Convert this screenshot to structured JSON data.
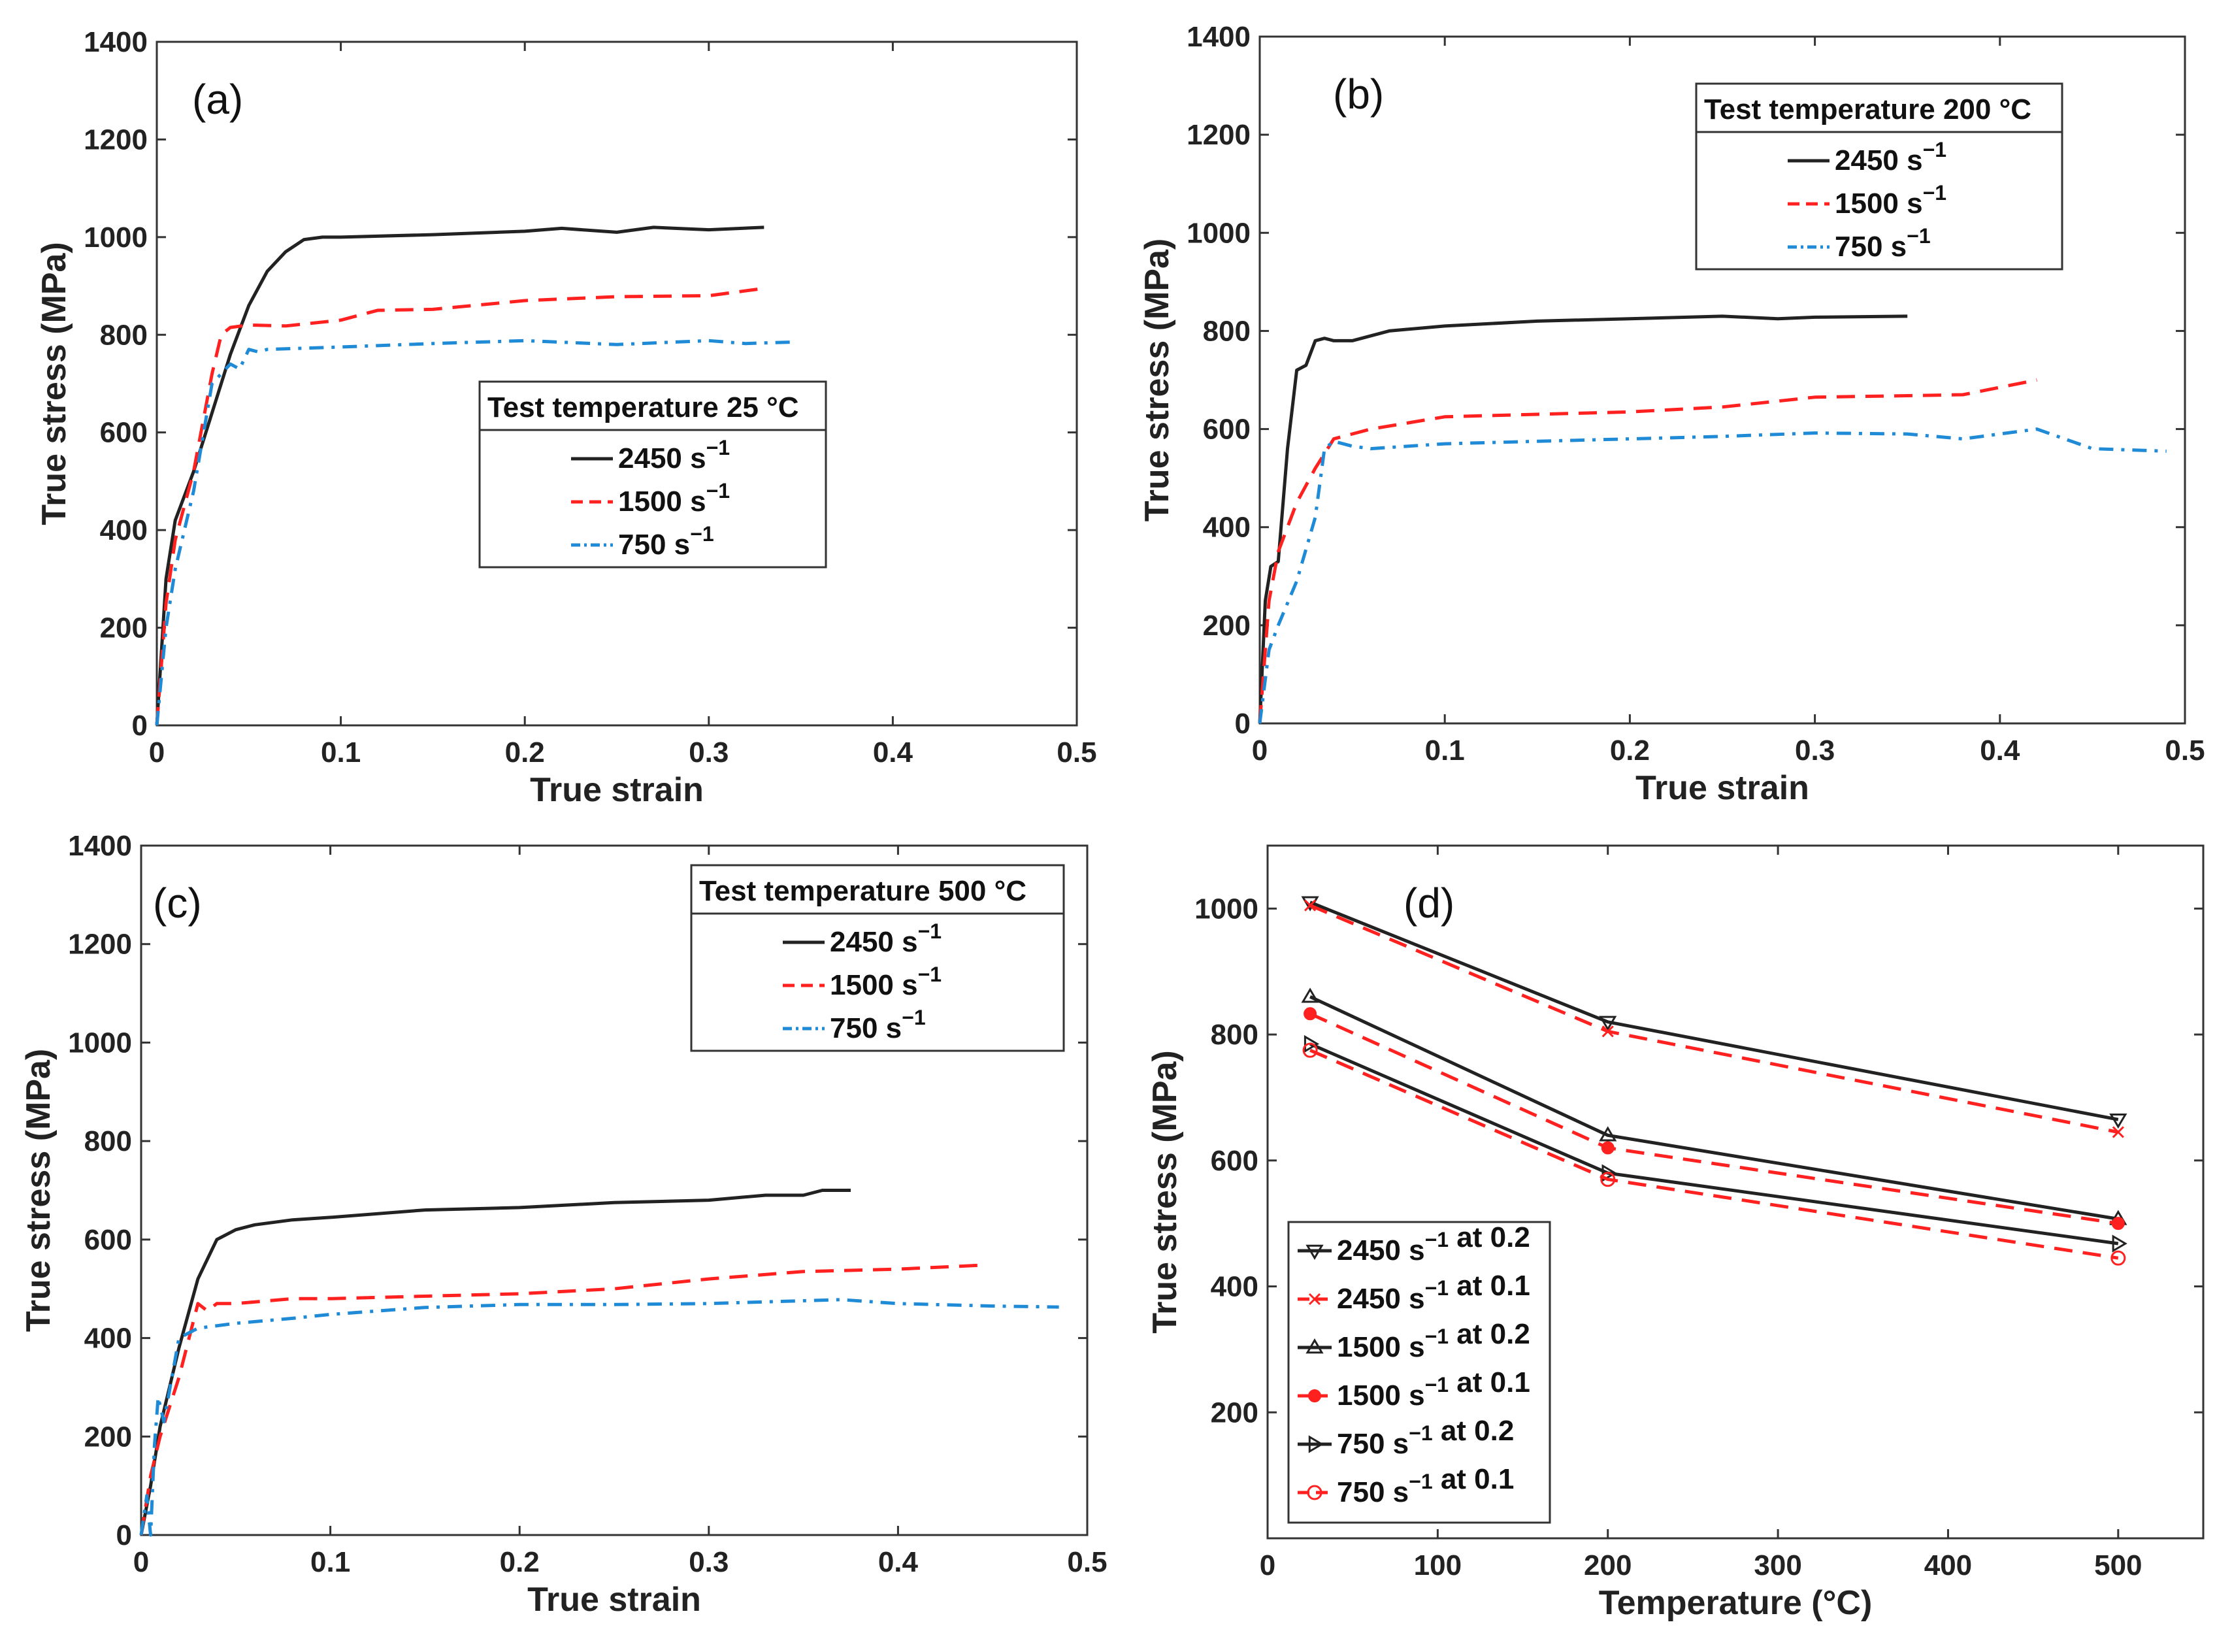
{
  "colors": {
    "black": "#222222",
    "red": "#ff2020",
    "blue": "#1f8ad6"
  },
  "chart_data": [
    {
      "panel": "(a)",
      "type": "line",
      "xlabel": "True strain",
      "ylabel": "True stress (MPa)",
      "xlim": [
        0,
        0.5
      ],
      "ylim": [
        0,
        1400
      ],
      "xticks": [
        "0",
        "0.1",
        "0.2",
        "0.3",
        "0.4",
        "0.5"
      ],
      "yticks": [
        "0",
        "200",
        "400",
        "600",
        "800",
        "1000",
        "1200",
        "1400"
      ],
      "legend": {
        "title": "Test temperature 25 °C",
        "position": "center-right"
      },
      "series": [
        {
          "name": "2450 s−1",
          "style": "solid",
          "color": "#222222",
          "x": [
            0,
            0.005,
            0.01,
            0.02,
            0.03,
            0.04,
            0.05,
            0.06,
            0.07,
            0.08,
            0.09,
            0.1,
            0.15,
            0.2,
            0.22,
            0.25,
            0.27,
            0.3,
            0.33
          ],
          "y": [
            0,
            300,
            420,
            520,
            640,
            760,
            860,
            930,
            970,
            995,
            1000,
            1000,
            1005,
            1012,
            1018,
            1010,
            1020,
            1015,
            1020
          ]
        },
        {
          "name": "1500 s−1",
          "style": "dashed",
          "color": "#ff2020",
          "x": [
            0,
            0.005,
            0.01,
            0.02,
            0.03,
            0.035,
            0.04,
            0.05,
            0.07,
            0.1,
            0.12,
            0.15,
            0.2,
            0.25,
            0.3,
            0.33
          ],
          "y": [
            0,
            250,
            380,
            520,
            720,
            800,
            815,
            820,
            818,
            830,
            850,
            852,
            870,
            878,
            880,
            895
          ]
        },
        {
          "name": "750 s−1",
          "style": "dashdot",
          "color": "#1f8ad6",
          "x": [
            0,
            0.005,
            0.01,
            0.02,
            0.03,
            0.04,
            0.045,
            0.05,
            0.055,
            0.06,
            0.1,
            0.15,
            0.2,
            0.25,
            0.3,
            0.32,
            0.345
          ],
          "y": [
            0,
            200,
            320,
            480,
            700,
            740,
            730,
            770,
            765,
            770,
            775,
            782,
            788,
            780,
            788,
            782,
            785
          ]
        }
      ]
    },
    {
      "panel": "(b)",
      "type": "line",
      "xlabel": "True strain",
      "ylabel": "True stress (MPa)",
      "xlim": [
        0,
        0.5
      ],
      "ylim": [
        0,
        1400
      ],
      "xticks": [
        "0",
        "0.1",
        "0.2",
        "0.3",
        "0.4",
        "0.5"
      ],
      "yticks": [
        "0",
        "200",
        "400",
        "600",
        "800",
        "1000",
        "1200",
        "1400"
      ],
      "legend": {
        "title": "Test temperature 200 °C",
        "position": "top-right"
      },
      "series": [
        {
          "name": "2450 s−1",
          "style": "solid",
          "color": "#222222",
          "x": [
            0,
            0.003,
            0.006,
            0.01,
            0.015,
            0.02,
            0.025,
            0.03,
            0.035,
            0.04,
            0.05,
            0.07,
            0.1,
            0.15,
            0.2,
            0.25,
            0.28,
            0.3,
            0.35
          ],
          "y": [
            0,
            250,
            320,
            330,
            560,
            720,
            730,
            780,
            785,
            780,
            780,
            800,
            810,
            820,
            825,
            830,
            825,
            828,
            830
          ]
        },
        {
          "name": "1500 s−1",
          "style": "dashed",
          "color": "#ff2020",
          "x": [
            0,
            0.005,
            0.01,
            0.02,
            0.03,
            0.04,
            0.06,
            0.1,
            0.15,
            0.2,
            0.25,
            0.3,
            0.35,
            0.38,
            0.42
          ],
          "y": [
            0,
            250,
            350,
            450,
            520,
            580,
            600,
            625,
            630,
            635,
            645,
            665,
            668,
            670,
            700
          ]
        },
        {
          "name": "750 s−1",
          "style": "dashdot",
          "color": "#1f8ad6",
          "x": [
            0,
            0.005,
            0.01,
            0.02,
            0.03,
            0.035,
            0.04,
            0.05,
            0.06,
            0.1,
            0.15,
            0.2,
            0.25,
            0.3,
            0.35,
            0.38,
            0.42,
            0.45,
            0.49
          ],
          "y": [
            0,
            150,
            200,
            290,
            420,
            560,
            575,
            565,
            560,
            570,
            575,
            580,
            585,
            592,
            590,
            580,
            600,
            560,
            555
          ]
        }
      ]
    },
    {
      "panel": "(c)",
      "type": "line",
      "xlabel": "True strain",
      "ylabel": "True stress (MPa)",
      "xlim": [
        0,
        0.5
      ],
      "ylim": [
        0,
        1400
      ],
      "xticks": [
        "0",
        "0.1",
        "0.2",
        "0.3",
        "0.4",
        "0.5"
      ],
      "yticks": [
        "0",
        "200",
        "400",
        "600",
        "800",
        "1000",
        "1200",
        "1400"
      ],
      "legend": {
        "title": "Test temperature 500 °C",
        "position": "top-right"
      },
      "series": [
        {
          "name": "2450 s−1",
          "style": "solid",
          "color": "#222222",
          "x": [
            0,
            0.005,
            0.01,
            0.02,
            0.03,
            0.04,
            0.05,
            0.06,
            0.08,
            0.1,
            0.15,
            0.2,
            0.25,
            0.3,
            0.33,
            0.35,
            0.36,
            0.375
          ],
          "y": [
            0,
            100,
            220,
            380,
            520,
            600,
            620,
            630,
            640,
            645,
            660,
            665,
            675,
            680,
            690,
            690,
            700,
            700
          ]
        },
        {
          "name": "1500 s−1",
          "style": "dashed",
          "color": "#ff2020",
          "x": [
            0,
            0.005,
            0.01,
            0.02,
            0.03,
            0.035,
            0.04,
            0.05,
            0.08,
            0.1,
            0.15,
            0.2,
            0.25,
            0.3,
            0.35,
            0.4,
            0.445
          ],
          "y": [
            0,
            120,
            200,
            320,
            470,
            455,
            470,
            470,
            480,
            480,
            485,
            490,
            500,
            520,
            535,
            540,
            548
          ]
        },
        {
          "name": "750 s−1",
          "style": "dashdot",
          "color": "#1f8ad6",
          "x": [
            0,
            0.003,
            0.005,
            0.007,
            0.009,
            0.012,
            0.02,
            0.03,
            0.05,
            0.08,
            0.1,
            0.15,
            0.2,
            0.25,
            0.3,
            0.37,
            0.4,
            0.45,
            0.485
          ],
          "y": [
            0,
            80,
            0,
            180,
            280,
            230,
            400,
            420,
            430,
            440,
            448,
            462,
            468,
            468,
            470,
            478,
            470,
            465,
            463
          ]
        }
      ]
    },
    {
      "panel": "(d)",
      "type": "line",
      "xlabel": "Temperature (°C)",
      "ylabel": "True stress (MPa)",
      "xlim": [
        0,
        550
      ],
      "ylim": [
        0,
        1100
      ],
      "xticks": [
        "0",
        "100",
        "200",
        "300",
        "400",
        "500"
      ],
      "yticks": [
        "200",
        "400",
        "600",
        "800",
        "1000"
      ],
      "legend": {
        "position": "bottom-left"
      },
      "series": [
        {
          "name": "2450 s−1 at 0.2",
          "style": "solid",
          "color": "#222222",
          "marker": "triangle-down",
          "x": [
            25,
            200,
            500
          ],
          "y": [
            1010,
            820,
            665
          ]
        },
        {
          "name": "2450 s−1 at 0.1",
          "style": "dashed",
          "color": "#ff2020",
          "marker": "x",
          "x": [
            25,
            200,
            500
          ],
          "y": [
            1005,
            805,
            645
          ]
        },
        {
          "name": "1500 s−1 at 0.2",
          "style": "solid",
          "color": "#222222",
          "marker": "triangle-up",
          "x": [
            25,
            200,
            500
          ],
          "y": [
            860,
            640,
            507
          ]
        },
        {
          "name": "1500 s−1 at 0.1",
          "style": "dashed",
          "color": "#ff2020",
          "marker": "dot",
          "x": [
            25,
            200,
            500
          ],
          "y": [
            833,
            620,
            500
          ]
        },
        {
          "name": "750 s−1 at 0.2",
          "style": "solid",
          "color": "#222222",
          "marker": "triangle-right",
          "x": [
            25,
            200,
            500
          ],
          "y": [
            785,
            580,
            468
          ]
        },
        {
          "name": "750 s−1 at 0.1",
          "style": "dashed",
          "color": "#ff2020",
          "marker": "circle",
          "x": [
            25,
            200,
            500
          ],
          "y": [
            775,
            570,
            445
          ]
        }
      ]
    }
  ]
}
